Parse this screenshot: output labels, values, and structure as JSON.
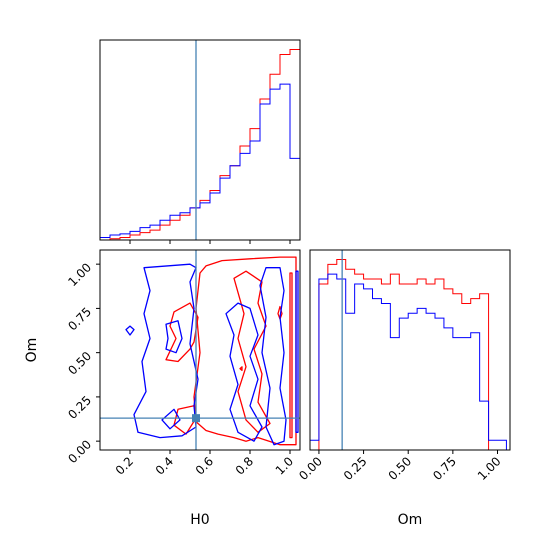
{
  "chart_data": [
    {
      "type": "histogram",
      "panel": "H0 marginal",
      "xlim": [
        0.05,
        1.05
      ],
      "truth_value": 0.53,
      "series": [
        {
          "color": "#ff0000",
          "bin_edges": [
            0.05,
            0.1,
            0.15,
            0.2,
            0.25,
            0.3,
            0.35,
            0.4,
            0.45,
            0.5,
            0.55,
            0.6,
            0.65,
            0.7,
            0.75,
            0.8,
            0.85,
            0.9,
            0.95,
            1.0,
            1.05
          ],
          "heights": [
            0,
            0.5,
            1,
            2,
            3,
            4,
            6,
            8,
            10,
            13,
            16,
            20,
            26,
            30,
            38,
            45,
            57,
            67,
            75,
            77,
            0
          ]
        },
        {
          "color": "#0000ff",
          "bin_edges": [
            0.05,
            0.1,
            0.15,
            0.2,
            0.25,
            0.3,
            0.35,
            0.4,
            0.45,
            0.5,
            0.55,
            0.6,
            0.65,
            0.7,
            0.75,
            0.8,
            0.85,
            0.9,
            0.95,
            1.0,
            1.05
          ],
          "heights": [
            1,
            2,
            2.5,
            3.5,
            5,
            6,
            8,
            10,
            11,
            13,
            15,
            19,
            25,
            30,
            35,
            40,
            55,
            61,
            63,
            33,
            1
          ]
        }
      ]
    },
    {
      "type": "contour",
      "panel": "H0 vs Om",
      "xlabel": "H0",
      "ylabel": "Om",
      "xlim": [
        0.05,
        1.05
      ],
      "ylim": [
        -0.05,
        1.08
      ],
      "xticks": [
        "0.2",
        "0.4",
        "0.6",
        "0.8",
        "1.0"
      ],
      "yticks": [
        "0.00",
        "0.25",
        "0.50",
        "0.75",
        "1.00"
      ],
      "truth_point": {
        "x": 0.53,
        "y": 0.13
      },
      "contours": [
        {
          "color": "#ff0000",
          "paths": [
            [
              [
                0.58,
                0.99
              ],
              [
                0.66,
                1.02
              ],
              [
                0.8,
                1.03
              ],
              [
                0.95,
                1.04
              ],
              [
                1.03,
                1.04
              ],
              [
                1.03,
                -0.02
              ],
              [
                0.95,
                -0.02
              ],
              [
                0.84,
                0.02
              ],
              [
                0.78,
                0.0
              ],
              [
                0.72,
                0.02
              ],
              [
                0.64,
                0.04
              ],
              [
                0.58,
                0.06
              ],
              [
                0.53,
                0.11
              ],
              [
                0.52,
                0.25
              ],
              [
                0.55,
                0.5
              ],
              [
                0.53,
                0.75
              ],
              [
                0.55,
                0.95
              ],
              [
                0.58,
                0.99
              ]
            ],
            [
              [
                0.42,
                0.73
              ],
              [
                0.5,
                0.78
              ],
              [
                0.54,
                0.7
              ],
              [
                0.52,
                0.56
              ],
              [
                0.5,
                0.52
              ],
              [
                0.44,
                0.45
              ],
              [
                0.38,
                0.46
              ],
              [
                0.43,
                0.58
              ],
              [
                0.4,
                0.65
              ],
              [
                0.42,
                0.73
              ]
            ],
            [
              [
                0.44,
                0.18
              ],
              [
                0.52,
                0.2
              ],
              [
                0.53,
                0.13
              ],
              [
                0.48,
                0.04
              ],
              [
                0.42,
                0.09
              ],
              [
                0.44,
                0.18
              ]
            ],
            [
              [
                0.72,
                0.92
              ],
              [
                0.78,
                0.96
              ],
              [
                0.86,
                0.9
              ],
              [
                0.84,
                0.78
              ],
              [
                0.88,
                0.65
              ],
              [
                0.82,
                0.52
              ],
              [
                0.86,
                0.38
              ],
              [
                0.84,
                0.22
              ],
              [
                0.9,
                0.1
              ],
              [
                0.84,
                0.05
              ],
              [
                0.78,
                0.12
              ],
              [
                0.74,
                0.28
              ],
              [
                0.78,
                0.42
              ],
              [
                0.74,
                0.58
              ],
              [
                0.77,
                0.72
              ],
              [
                0.72,
                0.92
              ]
            ],
            [
              [
                1.0,
                0.95
              ],
              [
                1.01,
                0.95
              ],
              [
                1.01,
                0.02
              ],
              [
                1.0,
                0.02
              ],
              [
                1.0,
                0.95
              ]
            ],
            [
              [
                0.75,
                0.41
              ],
              [
                0.76,
                0.42
              ],
              [
                0.76,
                0.4
              ],
              [
                0.75,
                0.41
              ]
            ],
            [
              [
                0.94,
                0.72
              ],
              [
                0.95,
                0.76
              ],
              [
                0.96,
                0.72
              ],
              [
                0.95,
                0.69
              ],
              [
                0.94,
                0.72
              ]
            ]
          ]
        },
        {
          "color": "#0000ff",
          "paths": [
            [
              [
                0.27,
                0.98
              ],
              [
                0.5,
                1.0
              ],
              [
                0.53,
                0.98
              ],
              [
                0.5,
                0.9
              ],
              [
                0.52,
                0.75
              ],
              [
                0.5,
                0.55
              ],
              [
                0.54,
                0.35
              ],
              [
                0.52,
                0.2
              ],
              [
                0.53,
                0.08
              ],
              [
                0.46,
                0.03
              ],
              [
                0.35,
                0.02
              ],
              [
                0.24,
                0.05
              ],
              [
                0.22,
                0.15
              ],
              [
                0.28,
                0.28
              ],
              [
                0.26,
                0.45
              ],
              [
                0.3,
                0.58
              ],
              [
                0.27,
                0.72
              ],
              [
                0.3,
                0.85
              ],
              [
                0.27,
                0.98
              ]
            ],
            [
              [
                0.38,
                0.66
              ],
              [
                0.44,
                0.68
              ],
              [
                0.46,
                0.58
              ],
              [
                0.43,
                0.5
              ],
              [
                0.38,
                0.52
              ],
              [
                0.39,
                0.58
              ],
              [
                0.38,
                0.66
              ]
            ],
            [
              [
                0.36,
                0.12
              ],
              [
                0.42,
                0.18
              ],
              [
                0.45,
                0.12
              ],
              [
                0.4,
                0.07
              ],
              [
                0.36,
                0.12
              ]
            ],
            [
              [
                0.18,
                0.63
              ],
              [
                0.2,
                0.65
              ],
              [
                0.22,
                0.63
              ],
              [
                0.2,
                0.6
              ],
              [
                0.18,
                0.63
              ]
            ],
            [
              [
                0.68,
                0.72
              ],
              [
                0.74,
                0.78
              ],
              [
                0.8,
                0.75
              ],
              [
                0.84,
                0.6
              ],
              [
                0.8,
                0.48
              ],
              [
                0.84,
                0.35
              ],
              [
                0.8,
                0.2
              ],
              [
                0.86,
                0.08
              ],
              [
                0.82,
                0.0
              ],
              [
                0.74,
                0.05
              ],
              [
                0.7,
                0.18
              ],
              [
                0.74,
                0.32
              ],
              [
                0.7,
                0.48
              ],
              [
                0.72,
                0.6
              ],
              [
                0.68,
                0.72
              ]
            ],
            [
              [
                0.88,
                0.98
              ],
              [
                0.95,
                0.98
              ],
              [
                0.97,
                0.85
              ],
              [
                0.95,
                0.7
              ],
              [
                0.97,
                0.5
              ],
              [
                0.95,
                0.3
              ],
              [
                0.98,
                0.12
              ],
              [
                0.97,
                0.0
              ],
              [
                0.92,
                -0.02
              ],
              [
                0.88,
                0.08
              ],
              [
                0.9,
                0.3
              ],
              [
                0.86,
                0.5
              ],
              [
                0.88,
                0.7
              ],
              [
                0.85,
                0.88
              ],
              [
                0.88,
                0.98
              ]
            ],
            [
              [
                1.03,
                0.96
              ],
              [
                1.04,
                0.96
              ],
              [
                1.04,
                0.05
              ],
              [
                1.03,
                0.05
              ],
              [
                1.03,
                0.96
              ]
            ]
          ]
        }
      ]
    },
    {
      "type": "histogram",
      "panel": "Om marginal",
      "xlabel": "Om",
      "xlim": [
        -0.05,
        1.07
      ],
      "xticks": [
        "0.00",
        "0.25",
        "0.50",
        "0.75",
        "1.00"
      ],
      "truth_value": 0.13,
      "series": [
        {
          "color": "#ff0000",
          "bin_edges": [
            -0.05,
            0.0,
            0.05,
            0.1,
            0.15,
            0.2,
            0.25,
            0.3,
            0.35,
            0.4,
            0.45,
            0.5,
            0.55,
            0.6,
            0.65,
            0.7,
            0.75,
            0.8,
            0.85,
            0.9,
            0.95,
            1.0,
            1.05
          ],
          "heights": [
            0,
            68,
            76,
            78,
            74,
            72,
            70,
            70,
            68,
            72,
            68,
            68,
            70,
            68,
            70,
            66,
            64,
            60,
            62,
            64,
            0,
            0
          ]
        },
        {
          "color": "#0000ff",
          "bin_edges": [
            -0.05,
            0.0,
            0.05,
            0.1,
            0.15,
            0.2,
            0.25,
            0.3,
            0.35,
            0.4,
            0.45,
            0.5,
            0.55,
            0.6,
            0.65,
            0.7,
            0.75,
            0.8,
            0.85,
            0.9,
            0.95,
            1.0,
            1.05
          ],
          "heights": [
            4,
            70,
            72,
            70,
            56,
            68,
            66,
            62,
            60,
            46,
            54,
            56,
            58,
            56,
            54,
            50,
            46,
            46,
            48,
            20,
            4,
            4
          ]
        }
      ]
    }
  ]
}
